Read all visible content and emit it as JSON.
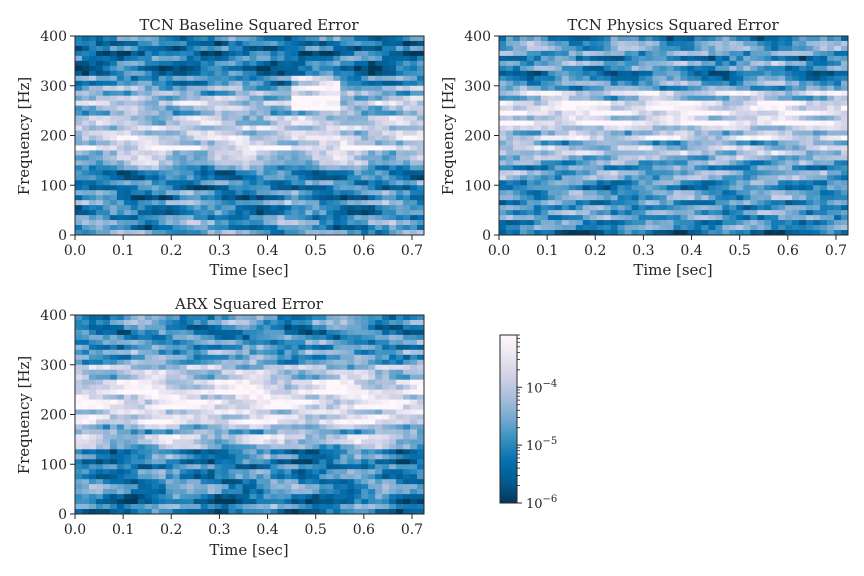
{
  "chart_data": [
    {
      "type": "heatmap",
      "title": "TCN Baseline Squared Error",
      "xlabel": "Time [sec]",
      "ylabel": "Frequency [Hz]",
      "xlim": [
        0.0,
        0.725
      ],
      "ylim": [
        0,
        400
      ],
      "x_ticks": [
        "0.0",
        "0.1",
        "0.2",
        "0.3",
        "0.4",
        "0.5",
        "0.6",
        "0.7"
      ],
      "y_ticks": [
        "0",
        "100",
        "200",
        "300",
        "400"
      ],
      "colorscale": "log",
      "dominant_high_error_band_hz": [
        150,
        260
      ],
      "secondary_high_error_region": {
        "time_sec": [
          0.45,
          0.55
        ],
        "freq_hz": [
          250,
          320
        ]
      }
    },
    {
      "type": "heatmap",
      "title": "TCN Physics Squared Error",
      "xlabel": "Time [sec]",
      "ylabel": "Frequency [Hz]",
      "xlim": [
        0.0,
        0.725
      ],
      "ylim": [
        0,
        400
      ],
      "x_ticks": [
        "0.0",
        "0.1",
        "0.2",
        "0.3",
        "0.4",
        "0.5",
        "0.6",
        "0.7"
      ],
      "y_ticks": [
        "0",
        "100",
        "200",
        "300",
        "400"
      ],
      "colorscale": "log",
      "dominant_high_error_band_hz": [
        180,
        290
      ]
    },
    {
      "type": "heatmap",
      "title": "ARX Squared Error",
      "xlabel": "Time [sec]",
      "ylabel": "Frequency [Hz]",
      "xlim": [
        0.0,
        0.725
      ],
      "ylim": [
        0,
        400
      ],
      "x_ticks": [
        "0.0",
        "0.1",
        "0.2",
        "0.3",
        "0.4",
        "0.5",
        "0.6",
        "0.7"
      ],
      "y_ticks": [
        "0",
        "100",
        "200",
        "300",
        "400"
      ],
      "colorscale": "log",
      "dominant_high_error_band_hz": [
        160,
        300
      ]
    }
  ],
  "colorbar": {
    "scale": "log",
    "range": [
      1e-06,
      0.0008
    ],
    "tick_values": [
      1e-06,
      1e-05,
      0.0001
    ],
    "tick_bases": [
      "10",
      "10",
      "10"
    ],
    "tick_exponents": [
      "−6",
      "−5",
      "−4"
    ],
    "colormap": [
      "#023858",
      "#045a8d",
      "#0570b0",
      "#3690c0",
      "#74a9cf",
      "#a6bddb",
      "#d0d1e6",
      "#ece7f2",
      "#fff7fb"
    ]
  }
}
